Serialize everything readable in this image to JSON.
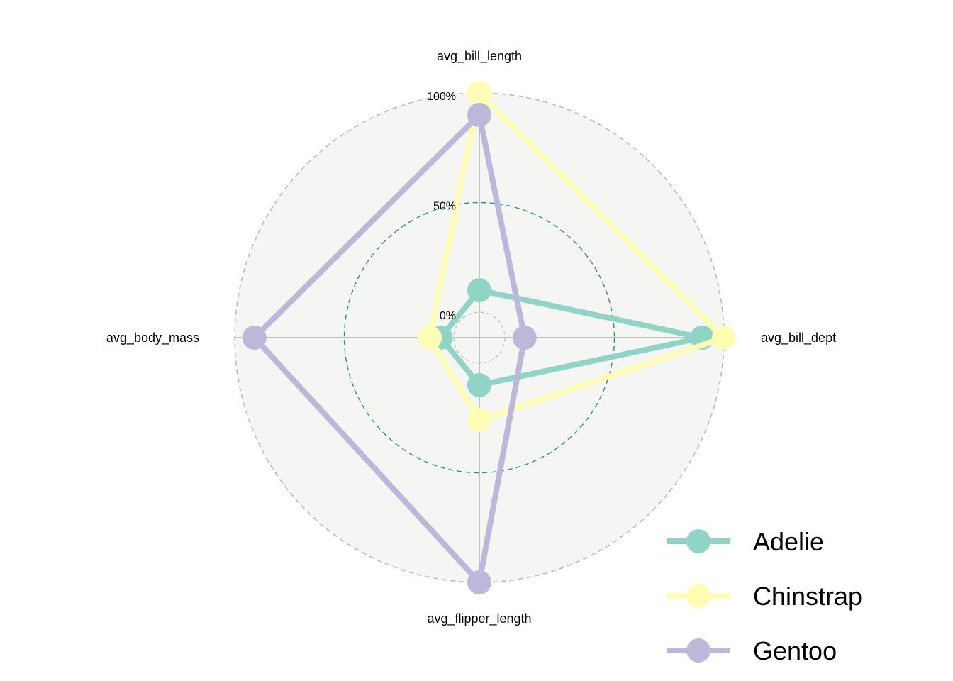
{
  "chart_data": {
    "type": "radar",
    "title": "",
    "axes": [
      "avg_bill_length",
      "avg_bill_dept",
      "avg_flipper_length",
      "avg_body_mass"
    ],
    "scale": {
      "min": 0,
      "max": 100,
      "unit": "%"
    },
    "grid_levels": [
      {
        "value": 0,
        "label": "0%"
      },
      {
        "value": 50,
        "label": "50%"
      },
      {
        "value": 100,
        "label": "100%"
      }
    ],
    "series": [
      {
        "name": "Adelie",
        "color": "#8fd5c6",
        "values": [
          10,
          90,
          10,
          6
        ]
      },
      {
        "name": "Chinstrap",
        "color": "#fdfdb4",
        "values": [
          100,
          100,
          26,
          11
        ]
      },
      {
        "name": "Gentoo",
        "color": "#bcb8d9",
        "values": [
          90,
          9,
          100,
          91
        ]
      }
    ],
    "legend_position": "bottom-right",
    "background_fill": "#f5f5f3",
    "outer_grid_color": "#bbbbbb",
    "mid_grid_color": "#2a8a96",
    "axis_line_color": "#b0b0b0"
  }
}
